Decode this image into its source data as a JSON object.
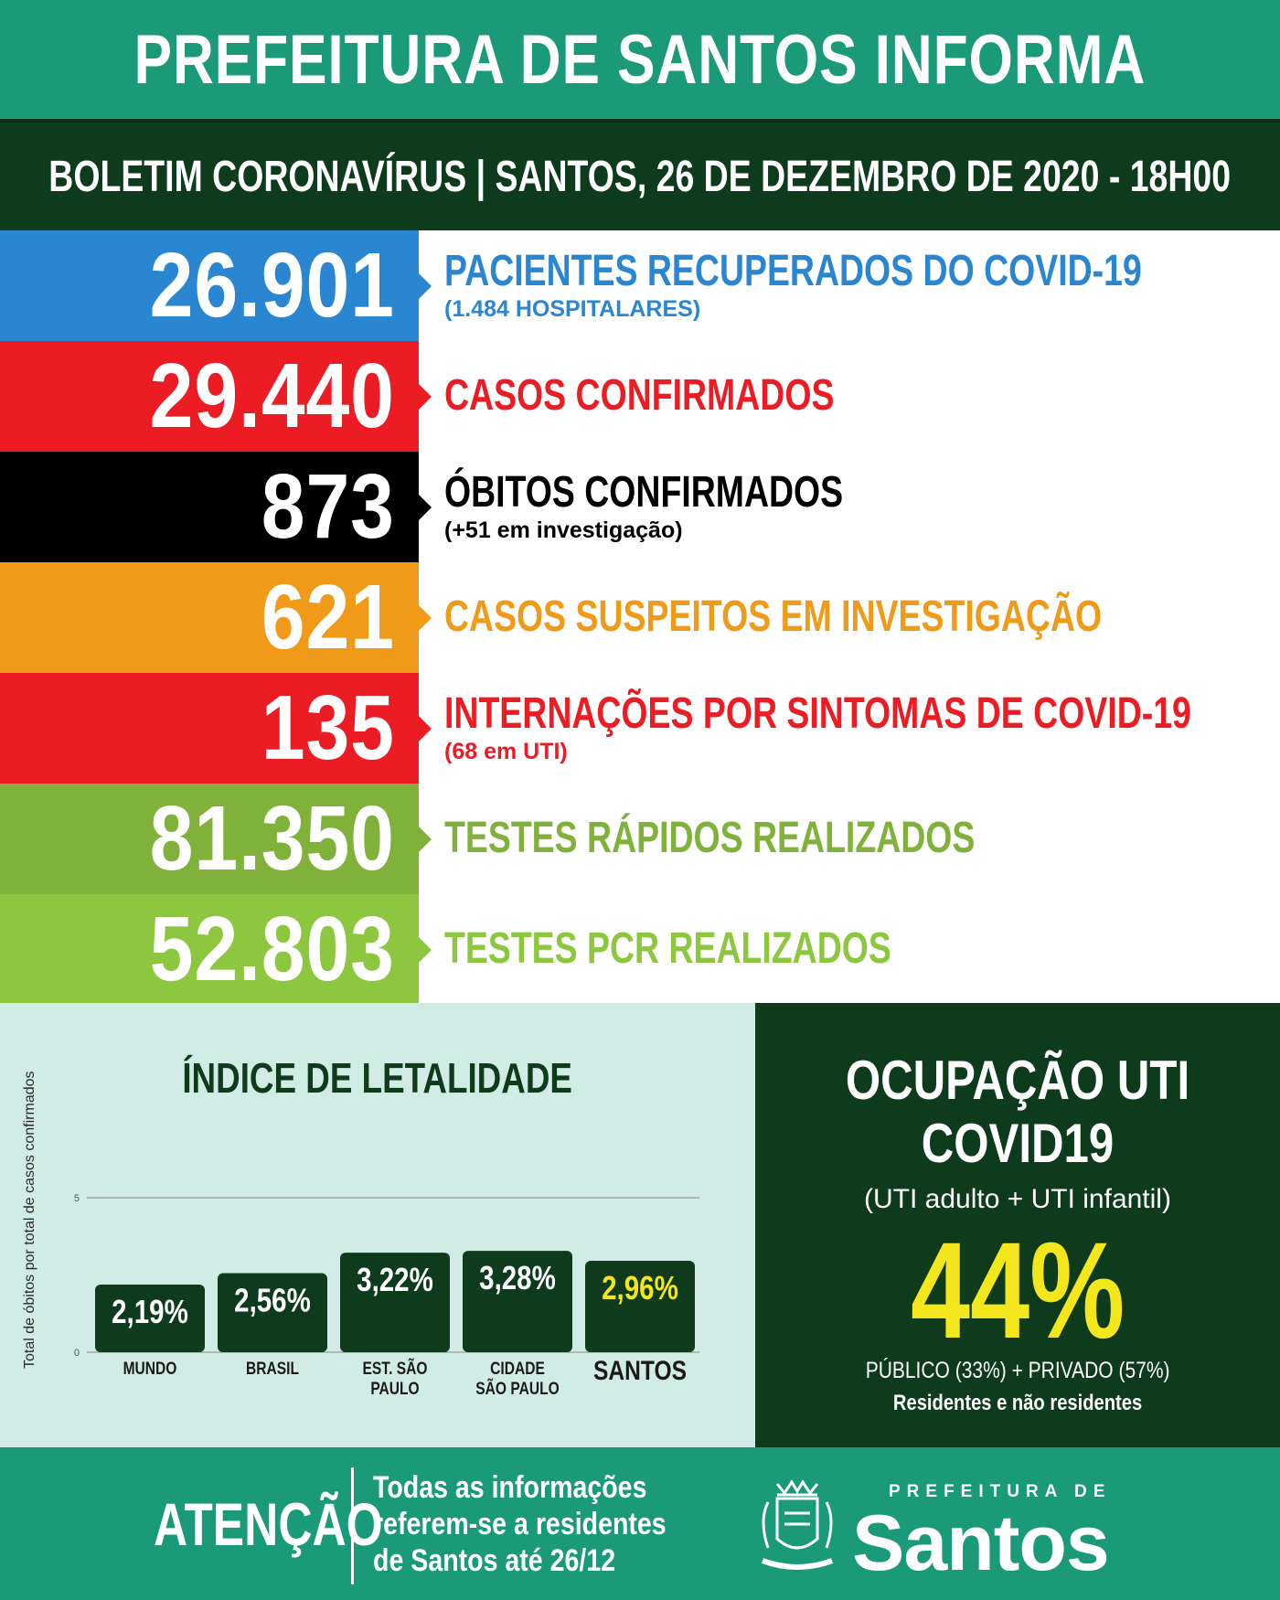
{
  "header": {
    "title": "PREFEITURA DE SANTOS INFORMA",
    "subtitle": "BOLETIM CORONAVÍRUS | SANTOS, 26 DE DEZEMBRO DE 2020 - 18H00"
  },
  "stats": [
    {
      "value": "26.901",
      "label": "PACIENTES RECUPERADOS DO COVID-19",
      "sub": "(1.484 HOSPITALARES)",
      "box_color": "#2a86d1",
      "text_color": "#2a86d1"
    },
    {
      "value": "29.440",
      "label": "CASOS CONFIRMADOS",
      "sub": "",
      "box_color": "#ec1c24",
      "text_color": "#ec1c24"
    },
    {
      "value": "873",
      "label": "ÓBITOS CONFIRMADOS",
      "sub": "(+51 em investigação)",
      "box_color": "#000000",
      "text_color": "#000000"
    },
    {
      "value": "621",
      "label": "CASOS SUSPEITOS EM INVESTIGAÇÃO",
      "sub": "",
      "box_color": "#f09a1a",
      "text_color": "#f09a1a"
    },
    {
      "value": "135",
      "label": "INTERNAÇÕES POR SINTOMAS DE COVID-19",
      "sub": "(68 em UTI)",
      "box_color": "#ec1c24",
      "text_color": "#ec1c24"
    },
    {
      "value": "81.350",
      "label": "TESTES RÁPIDOS REALIZADOS",
      "sub": "",
      "box_color": "#80b23b",
      "text_color": "#80b23b"
    },
    {
      "value": "52.803",
      "label": "TESTES PCR REALIZADOS",
      "sub": "",
      "box_color": "#8dc63f",
      "text_color": "#8dc63f"
    }
  ],
  "lethality": {
    "title": "ÍNDICE DE LETALIDADE",
    "axis_label": "Total de óbitos por total de casos confirmados"
  },
  "chart_data": {
    "type": "bar",
    "title": "ÍNDICE DE LETALIDADE",
    "ylabel": "Total de óbitos por total de casos confirmados",
    "xlabel": "",
    "ylim": [
      0,
      5
    ],
    "yticks": [
      0,
      5
    ],
    "categories": [
      "MUNDO",
      "BRASIL",
      "EST. SÃO PAULO",
      "CIDADE SÃO PAULO",
      "SANTOS"
    ],
    "category_lines": [
      [
        "MUNDO"
      ],
      [
        "BRASIL"
      ],
      [
        "EST. SÃO",
        "PAULO"
      ],
      [
        "CIDADE",
        "SÃO PAULO"
      ],
      [
        "SANTOS"
      ]
    ],
    "values": [
      2.19,
      2.56,
      3.22,
      3.28,
      2.96
    ],
    "data_labels": [
      "2,19%",
      "2,56%",
      "3,22%",
      "3,28%",
      "2,96%"
    ],
    "bar_color": "#0e3b1c",
    "label_colors": [
      "#ffffff",
      "#ffffff",
      "#ffffff",
      "#ffffff",
      "#f4e61c"
    ],
    "grid": true
  },
  "uti": {
    "title_line1": "OCUPAÇÃO UTI",
    "title_line2": "COVID19",
    "subtitle": "(UTI adulto + UTI infantil)",
    "percent": "44%",
    "breakdown": "PÚBLICO (33%) + PRIVADO (57%)",
    "residents": "Residentes e não residentes",
    "percent_color": "#f4e61c"
  },
  "footer": {
    "attention": "ATENÇÃO",
    "notice_lines": [
      "Todas as informações",
      "referem-se a residentes",
      "de Santos até 26/12"
    ],
    "brand_top": "PREFEITURA DE",
    "brand_main": "Santos",
    "crest_icon": "santos-coat-of-arms-icon"
  }
}
